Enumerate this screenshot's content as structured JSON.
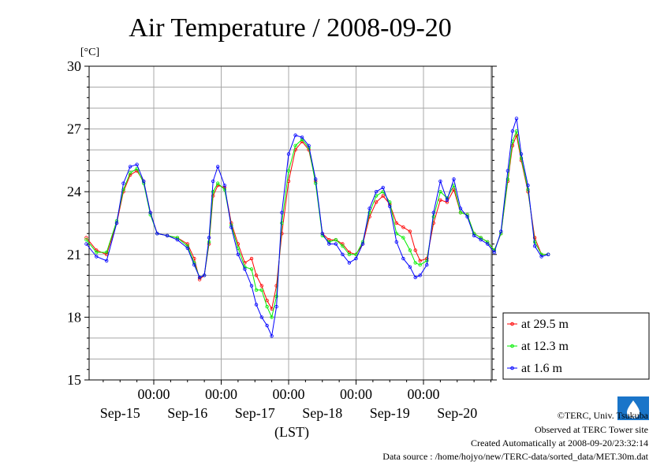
{
  "chart_data": {
    "type": "line",
    "title": "Air Temperature / 2008-09-20",
    "ylabel": "[°C]",
    "xlabel": "(LST)",
    "ylim": [
      15,
      30
    ],
    "yticks": [
      15,
      18,
      21,
      24,
      27,
      30
    ],
    "xlim_days": [
      0,
      6
    ],
    "x_time_labels": [
      "00:00",
      "00:00",
      "00:00",
      "00:00",
      "00:00"
    ],
    "x_date_labels": [
      "Sep-15",
      "Sep-16",
      "Sep-17",
      "Sep-18",
      "Sep-19",
      "Sep-20"
    ],
    "grid": true,
    "legend_position": "right",
    "series": [
      {
        "name": "at 29.5 m",
        "color": "#ff0000",
        "points": [
          [
            0.0,
            21.8
          ],
          [
            0.15,
            21.2
          ],
          [
            0.3,
            21.0
          ],
          [
            0.45,
            22.5
          ],
          [
            0.55,
            24.0
          ],
          [
            0.65,
            24.8
          ],
          [
            0.75,
            25.0
          ],
          [
            0.85,
            24.5
          ],
          [
            0.95,
            23.0
          ],
          [
            1.05,
            22.0
          ],
          [
            1.2,
            21.9
          ],
          [
            1.35,
            21.8
          ],
          [
            1.5,
            21.5
          ],
          [
            1.6,
            20.8
          ],
          [
            1.68,
            19.8
          ],
          [
            1.75,
            20.0
          ],
          [
            1.82,
            21.5
          ],
          [
            1.88,
            23.8
          ],
          [
            1.95,
            24.3
          ],
          [
            2.05,
            24.2
          ],
          [
            2.15,
            22.5
          ],
          [
            2.25,
            21.5
          ],
          [
            2.35,
            20.6
          ],
          [
            2.45,
            20.8
          ],
          [
            2.52,
            20.0
          ],
          [
            2.6,
            19.5
          ],
          [
            2.68,
            18.8
          ],
          [
            2.75,
            18.4
          ],
          [
            2.82,
            19.5
          ],
          [
            2.9,
            22.0
          ],
          [
            3.0,
            24.5
          ],
          [
            3.1,
            26.0
          ],
          [
            3.2,
            26.4
          ],
          [
            3.3,
            26.0
          ],
          [
            3.4,
            24.5
          ],
          [
            3.5,
            22.0
          ],
          [
            3.6,
            21.7
          ],
          [
            3.7,
            21.7
          ],
          [
            3.8,
            21.5
          ],
          [
            3.9,
            21.1
          ],
          [
            4.0,
            21.0
          ],
          [
            4.1,
            21.5
          ],
          [
            4.2,
            22.8
          ],
          [
            4.3,
            23.5
          ],
          [
            4.4,
            23.8
          ],
          [
            4.5,
            23.4
          ],
          [
            4.6,
            22.5
          ],
          [
            4.7,
            22.3
          ],
          [
            4.8,
            22.1
          ],
          [
            4.88,
            21.2
          ],
          [
            4.95,
            20.7
          ],
          [
            5.05,
            20.8
          ],
          [
            5.15,
            22.5
          ],
          [
            5.25,
            23.6
          ],
          [
            5.35,
            23.5
          ],
          [
            5.45,
            24.1
          ],
          [
            5.55,
            23.0
          ],
          [
            5.65,
            22.9
          ],
          [
            5.75,
            22.0
          ],
          [
            5.85,
            21.8
          ],
          [
            5.95,
            21.6
          ],
          [
            6.05,
            21.2
          ],
          [
            6.15,
            22.0
          ],
          [
            6.25,
            24.5
          ],
          [
            6.32,
            26.2
          ],
          [
            6.38,
            26.7
          ],
          [
            6.45,
            25.5
          ],
          [
            6.55,
            24.0
          ],
          [
            6.65,
            21.8
          ],
          [
            6.75,
            21.0
          ],
          [
            6.85,
            21.0
          ]
        ]
      },
      {
        "name": "at 12.3 m",
        "color": "#00ee00",
        "points": [
          [
            0.0,
            21.7
          ],
          [
            0.15,
            21.1
          ],
          [
            0.3,
            21.1
          ],
          [
            0.45,
            22.6
          ],
          [
            0.55,
            24.1
          ],
          [
            0.65,
            24.9
          ],
          [
            0.75,
            25.1
          ],
          [
            0.85,
            24.4
          ],
          [
            0.95,
            22.9
          ],
          [
            1.05,
            22.0
          ],
          [
            1.2,
            21.9
          ],
          [
            1.35,
            21.8
          ],
          [
            1.5,
            21.4
          ],
          [
            1.6,
            20.6
          ],
          [
            1.68,
            19.9
          ],
          [
            1.75,
            20.0
          ],
          [
            1.82,
            21.6
          ],
          [
            1.88,
            24.0
          ],
          [
            1.95,
            24.4
          ],
          [
            2.05,
            24.1
          ],
          [
            2.15,
            22.4
          ],
          [
            2.25,
            21.3
          ],
          [
            2.35,
            20.4
          ],
          [
            2.45,
            20.3
          ],
          [
            2.52,
            19.3
          ],
          [
            2.6,
            19.3
          ],
          [
            2.68,
            18.5
          ],
          [
            2.75,
            18.0
          ],
          [
            2.82,
            19.0
          ],
          [
            2.9,
            22.5
          ],
          [
            3.0,
            25.0
          ],
          [
            3.1,
            26.2
          ],
          [
            3.2,
            26.5
          ],
          [
            3.3,
            26.1
          ],
          [
            3.4,
            24.4
          ],
          [
            3.5,
            21.9
          ],
          [
            3.6,
            21.6
          ],
          [
            3.7,
            21.7
          ],
          [
            3.8,
            21.4
          ],
          [
            3.9,
            21.0
          ],
          [
            4.0,
            21.0
          ],
          [
            4.1,
            21.6
          ],
          [
            4.2,
            23.0
          ],
          [
            4.3,
            23.8
          ],
          [
            4.4,
            24.0
          ],
          [
            4.5,
            23.5
          ],
          [
            4.6,
            22.0
          ],
          [
            4.7,
            21.8
          ],
          [
            4.8,
            21.2
          ],
          [
            4.88,
            20.6
          ],
          [
            4.95,
            20.5
          ],
          [
            5.05,
            20.7
          ],
          [
            5.15,
            22.8
          ],
          [
            5.25,
            24.0
          ],
          [
            5.35,
            23.7
          ],
          [
            5.45,
            24.3
          ],
          [
            5.55,
            23.0
          ],
          [
            5.65,
            22.9
          ],
          [
            5.75,
            22.0
          ],
          [
            5.85,
            21.8
          ],
          [
            5.95,
            21.6
          ],
          [
            6.05,
            21.2
          ],
          [
            6.15,
            22.0
          ],
          [
            6.25,
            24.6
          ],
          [
            6.32,
            26.4
          ],
          [
            6.38,
            26.9
          ],
          [
            6.45,
            25.6
          ],
          [
            6.55,
            24.1
          ],
          [
            6.65,
            21.6
          ],
          [
            6.75,
            21.0
          ],
          [
            6.85,
            21.0
          ]
        ]
      },
      {
        "name": "at 1.6 m",
        "color": "#0000ff",
        "points": [
          [
            0.0,
            21.5
          ],
          [
            0.15,
            20.9
          ],
          [
            0.3,
            20.7
          ],
          [
            0.45,
            22.5
          ],
          [
            0.55,
            24.4
          ],
          [
            0.65,
            25.2
          ],
          [
            0.75,
            25.3
          ],
          [
            0.85,
            24.5
          ],
          [
            0.95,
            23.0
          ],
          [
            1.05,
            22.0
          ],
          [
            1.2,
            21.9
          ],
          [
            1.35,
            21.7
          ],
          [
            1.5,
            21.3
          ],
          [
            1.6,
            20.5
          ],
          [
            1.68,
            19.9
          ],
          [
            1.75,
            20.0
          ],
          [
            1.82,
            21.8
          ],
          [
            1.88,
            24.5
          ],
          [
            1.95,
            25.2
          ],
          [
            2.05,
            24.3
          ],
          [
            2.15,
            22.3
          ],
          [
            2.25,
            21.0
          ],
          [
            2.35,
            20.3
          ],
          [
            2.45,
            19.5
          ],
          [
            2.52,
            18.6
          ],
          [
            2.6,
            18.0
          ],
          [
            2.68,
            17.6
          ],
          [
            2.75,
            17.1
          ],
          [
            2.82,
            18.5
          ],
          [
            2.9,
            23.0
          ],
          [
            3.0,
            25.8
          ],
          [
            3.1,
            26.7
          ],
          [
            3.2,
            26.6
          ],
          [
            3.3,
            26.2
          ],
          [
            3.4,
            24.6
          ],
          [
            3.5,
            22.0
          ],
          [
            3.6,
            21.5
          ],
          [
            3.7,
            21.5
          ],
          [
            3.8,
            21.0
          ],
          [
            3.9,
            20.6
          ],
          [
            4.0,
            20.8
          ],
          [
            4.1,
            21.5
          ],
          [
            4.2,
            23.2
          ],
          [
            4.3,
            24.0
          ],
          [
            4.4,
            24.2
          ],
          [
            4.5,
            23.3
          ],
          [
            4.6,
            21.6
          ],
          [
            4.7,
            20.8
          ],
          [
            4.8,
            20.4
          ],
          [
            4.88,
            19.9
          ],
          [
            4.95,
            20.0
          ],
          [
            5.05,
            20.5
          ],
          [
            5.15,
            23.0
          ],
          [
            5.25,
            24.5
          ],
          [
            5.35,
            23.6
          ],
          [
            5.45,
            24.6
          ],
          [
            5.55,
            23.2
          ],
          [
            5.65,
            22.8
          ],
          [
            5.75,
            21.9
          ],
          [
            5.85,
            21.7
          ],
          [
            5.95,
            21.5
          ],
          [
            6.05,
            21.1
          ],
          [
            6.15,
            22.1
          ],
          [
            6.25,
            25.0
          ],
          [
            6.32,
            26.9
          ],
          [
            6.38,
            27.5
          ],
          [
            6.45,
            25.8
          ],
          [
            6.55,
            24.3
          ],
          [
            6.65,
            21.4
          ],
          [
            6.75,
            20.9
          ],
          [
            6.85,
            21.0
          ]
        ]
      }
    ]
  },
  "footer": {
    "copyright": "©TERC, Univ. Tsukuba",
    "observed": "Observed at TERC Tower site",
    "created": "Created Automatically at 2008-09-20/23:32:14",
    "source": "Data source : /home/hojyo/new/TERC-data/sorted_data/MET.30m.dat"
  },
  "logo": {
    "text": "TERC"
  }
}
